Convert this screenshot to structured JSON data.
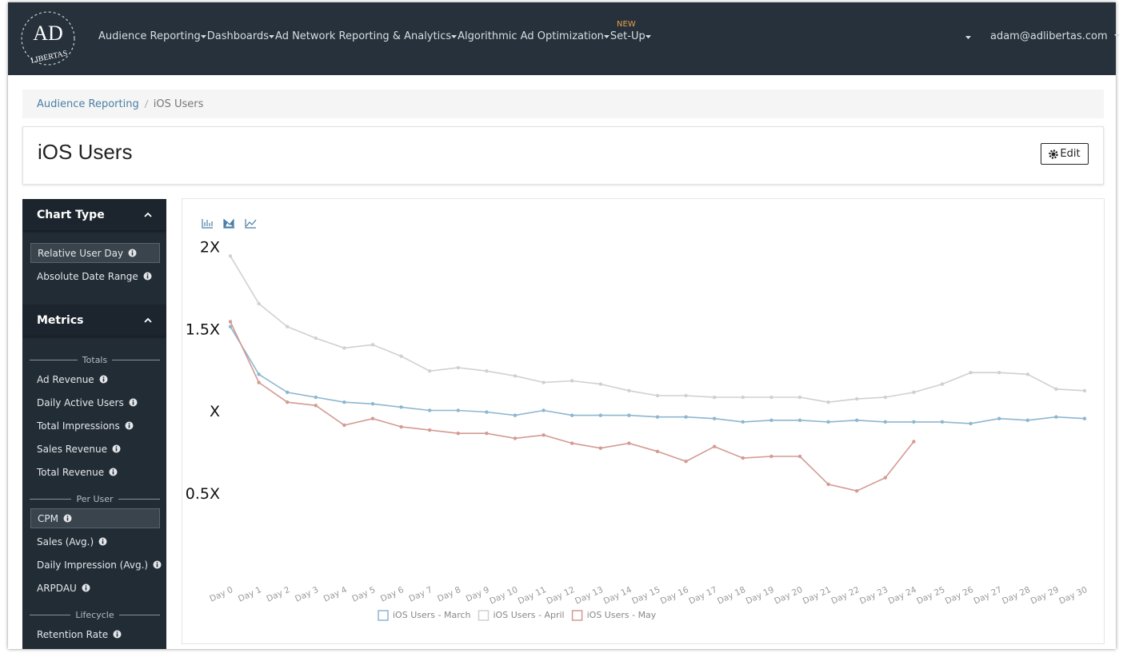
{
  "logo": {
    "mark": "AD",
    "word": "LIBERTAS"
  },
  "nav": {
    "badge": "NEW",
    "items": [
      "Audience Reporting",
      "Dashboards",
      "Ad Network Reporting & Analytics",
      "Algorithmic Ad Optimization",
      "Set-Up"
    ],
    "user": "adam@adlibertas.com"
  },
  "breadcrumb": [
    "Audience Reporting",
    "iOS Users"
  ],
  "page_title": "iOS Users",
  "edit_button": "Edit",
  "sidebar": {
    "chart_type": {
      "heading": "Chart Type",
      "options": [
        {
          "label": "Relative User Day",
          "selected": true
        },
        {
          "label": "Absolute Date Range"
        }
      ]
    },
    "metrics": {
      "heading": "Metrics",
      "groups": [
        {
          "label": "Totals",
          "items": [
            {
              "label": "Ad Revenue"
            },
            {
              "label": "Daily Active Users"
            },
            {
              "label": "Total Impressions"
            },
            {
              "label": "Sales Revenue"
            },
            {
              "label": "Total Revenue"
            }
          ]
        },
        {
          "label": "Per User",
          "items": [
            {
              "label": "CPM",
              "selected": true
            },
            {
              "label": "Sales (Avg.)"
            },
            {
              "label": "Daily Impression (Avg.)"
            },
            {
              "label": "ARPDAU"
            }
          ]
        },
        {
          "label": "Lifecycle",
          "items": [
            {
              "label": "Retention Rate"
            }
          ]
        }
      ]
    }
  },
  "chart_data": {
    "type": "line",
    "categories": [
      "Day 0",
      "Day 1",
      "Day 2",
      "Day 3",
      "Day 4",
      "Day 5",
      "Day 6",
      "Day 7",
      "Day 8",
      "Day 9",
      "Day 10",
      "Day 11",
      "Day 12",
      "Day 13",
      "Day 14",
      "Day 15",
      "Day 16",
      "Day 17",
      "Day 18",
      "Day 19",
      "Day 20",
      "Day 21",
      "Day 22",
      "Day 23",
      "Day 24",
      "Day 25",
      "Day 26",
      "Day 27",
      "Day 28",
      "Day 29",
      "Day 30"
    ],
    "series": [
      {
        "name": "iOS Users - March",
        "color": "#8db6cf",
        "values": [
          1.52,
          1.23,
          1.12,
          1.09,
          1.06,
          1.05,
          1.03,
          1.01,
          1.01,
          1.0,
          0.98,
          1.01,
          0.98,
          0.98,
          0.98,
          0.97,
          0.97,
          0.96,
          0.94,
          0.95,
          0.95,
          0.94,
          0.95,
          0.94,
          0.94,
          0.94,
          0.93,
          0.96,
          0.95,
          0.97,
          0.96
        ]
      },
      {
        "name": "iOS Users - April",
        "color": "#d0d0d0",
        "values": [
          1.95,
          1.66,
          1.52,
          1.45,
          1.39,
          1.41,
          1.34,
          1.25,
          1.27,
          1.25,
          1.22,
          1.18,
          1.19,
          1.17,
          1.13,
          1.1,
          1.1,
          1.09,
          1.09,
          1.09,
          1.09,
          1.06,
          1.08,
          1.09,
          1.12,
          1.17,
          1.24,
          1.24,
          1.23,
          1.14,
          1.13
        ]
      },
      {
        "name": "iOS Users - May",
        "color": "#d39a92",
        "values": [
          1.55,
          1.18,
          1.06,
          1.04,
          0.92,
          0.96,
          0.91,
          0.89,
          0.87,
          0.87,
          0.84,
          0.86,
          0.81,
          0.78,
          0.81,
          0.76,
          0.7,
          0.79,
          0.72,
          0.73,
          0.73,
          0.56,
          0.52,
          0.6,
          0.82,
          null,
          null,
          null,
          null,
          null,
          null
        ]
      }
    ],
    "ylim": [
      0,
      2.1
    ],
    "yticks": [
      {
        "value": 0.5,
        "label": "0.5X"
      },
      {
        "value": 1,
        "label": "X"
      },
      {
        "value": 1.5,
        "label": "1.5X"
      },
      {
        "value": 2,
        "label": "2X"
      }
    ],
    "grid": false,
    "legend": "bottom"
  }
}
